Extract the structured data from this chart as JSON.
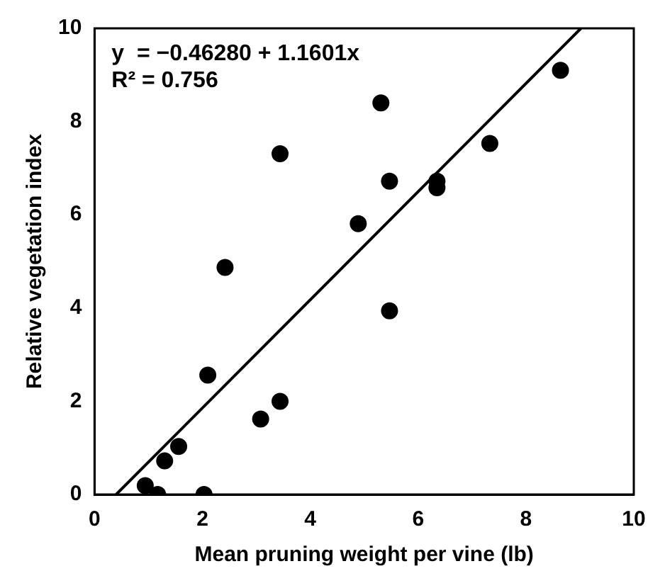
{
  "chart_data": {
    "type": "scatter",
    "xlabel": "Mean pruning weight per vine (lb)",
    "ylabel": "Relative vegetation index",
    "xlim": [
      0,
      10
    ],
    "xticks": [
      0,
      2,
      4,
      6,
      8,
      10
    ],
    "ylim": [
      0,
      10
    ],
    "yticks": [
      0,
      2,
      4,
      6,
      8,
      10
    ],
    "grid": false,
    "legend": false,
    "marker": "circle",
    "annotations": [
      "y  = −0.46280 + 1.1601x",
      "R² = 0.756"
    ],
    "series": [
      {
        "color": "#000000",
        "x": [
          0.94,
          1.17,
          1.3,
          1.56,
          2.03,
          2.1,
          2.42,
          3.08,
          3.44,
          3.44,
          4.89,
          5.31,
          5.47,
          5.47,
          6.35,
          6.35,
          7.33,
          8.64
        ],
        "values": [
          0.19,
          0,
          0.72,
          1.03,
          0,
          2.56,
          4.87,
          1.62,
          2.0,
          7.31,
          5.81,
          8.4,
          6.72,
          3.94,
          6.72,
          6.58,
          7.53,
          9.1
        ]
      },
      {
        "type": "line",
        "color": "#000000",
        "marker": "none",
        "line_style": "solid",
        "x": [
          0.4,
          9.02
        ],
        "values": [
          0,
          10
        ]
      }
    ]
  }
}
